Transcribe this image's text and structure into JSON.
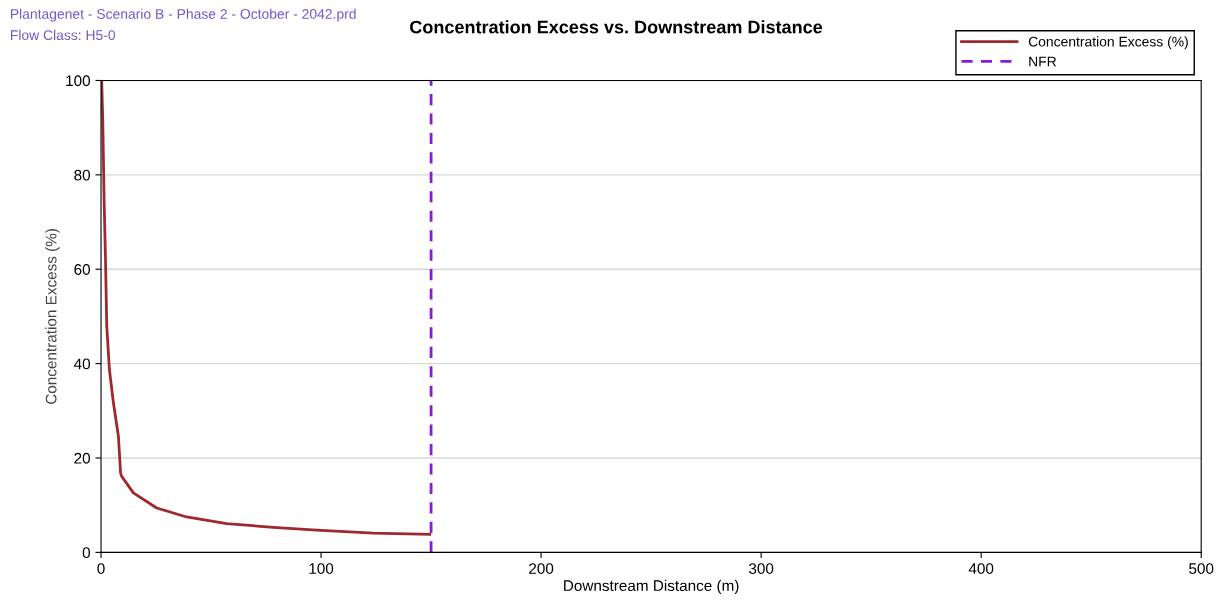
{
  "chart_data": {
    "type": "line",
    "title": "Concentration Excess vs. Downstream Distance",
    "subtitle": "Plantagenet - Scenario B - Phase 2 - October - 2042.prd",
    "annotations": [
      "Flow Class: H5-0"
    ],
    "xlabel": "Downstream Distance (m)",
    "ylabel": "Concentration Excess (%)",
    "xlim": [
      0,
      500
    ],
    "xticks": [
      0,
      100,
      200,
      300,
      400,
      500
    ],
    "ylim": [
      0,
      100
    ],
    "yticks": [
      0,
      20,
      40,
      60,
      80,
      100
    ],
    "grid": "y",
    "legend": "top right",
    "series": [
      {
        "name": "Concentration Excess (%)",
        "color": "#a0282d",
        "line_style": "solid",
        "x": [
          0.3,
          0.8,
          1.4,
          2.0,
          2.6,
          3.8,
          5.6,
          7.9,
          8.9,
          9.4,
          14.7,
          25.3,
          38.9,
          57.1,
          78.3,
          98,
          123.7,
          149.4
        ],
        "values": [
          100,
          91.4,
          74.7,
          62.8,
          48,
          38.8,
          31.8,
          24.6,
          16.8,
          16.1,
          12.6,
          9.4,
          7.5,
          6.1,
          5.3,
          4.7,
          4.1,
          3.8
        ]
      },
      {
        "name": "NFR",
        "color": "#8a1ad6",
        "line_style": "dashed",
        "x": [
          150,
          150
        ],
        "values": [
          0,
          100
        ]
      }
    ]
  }
}
